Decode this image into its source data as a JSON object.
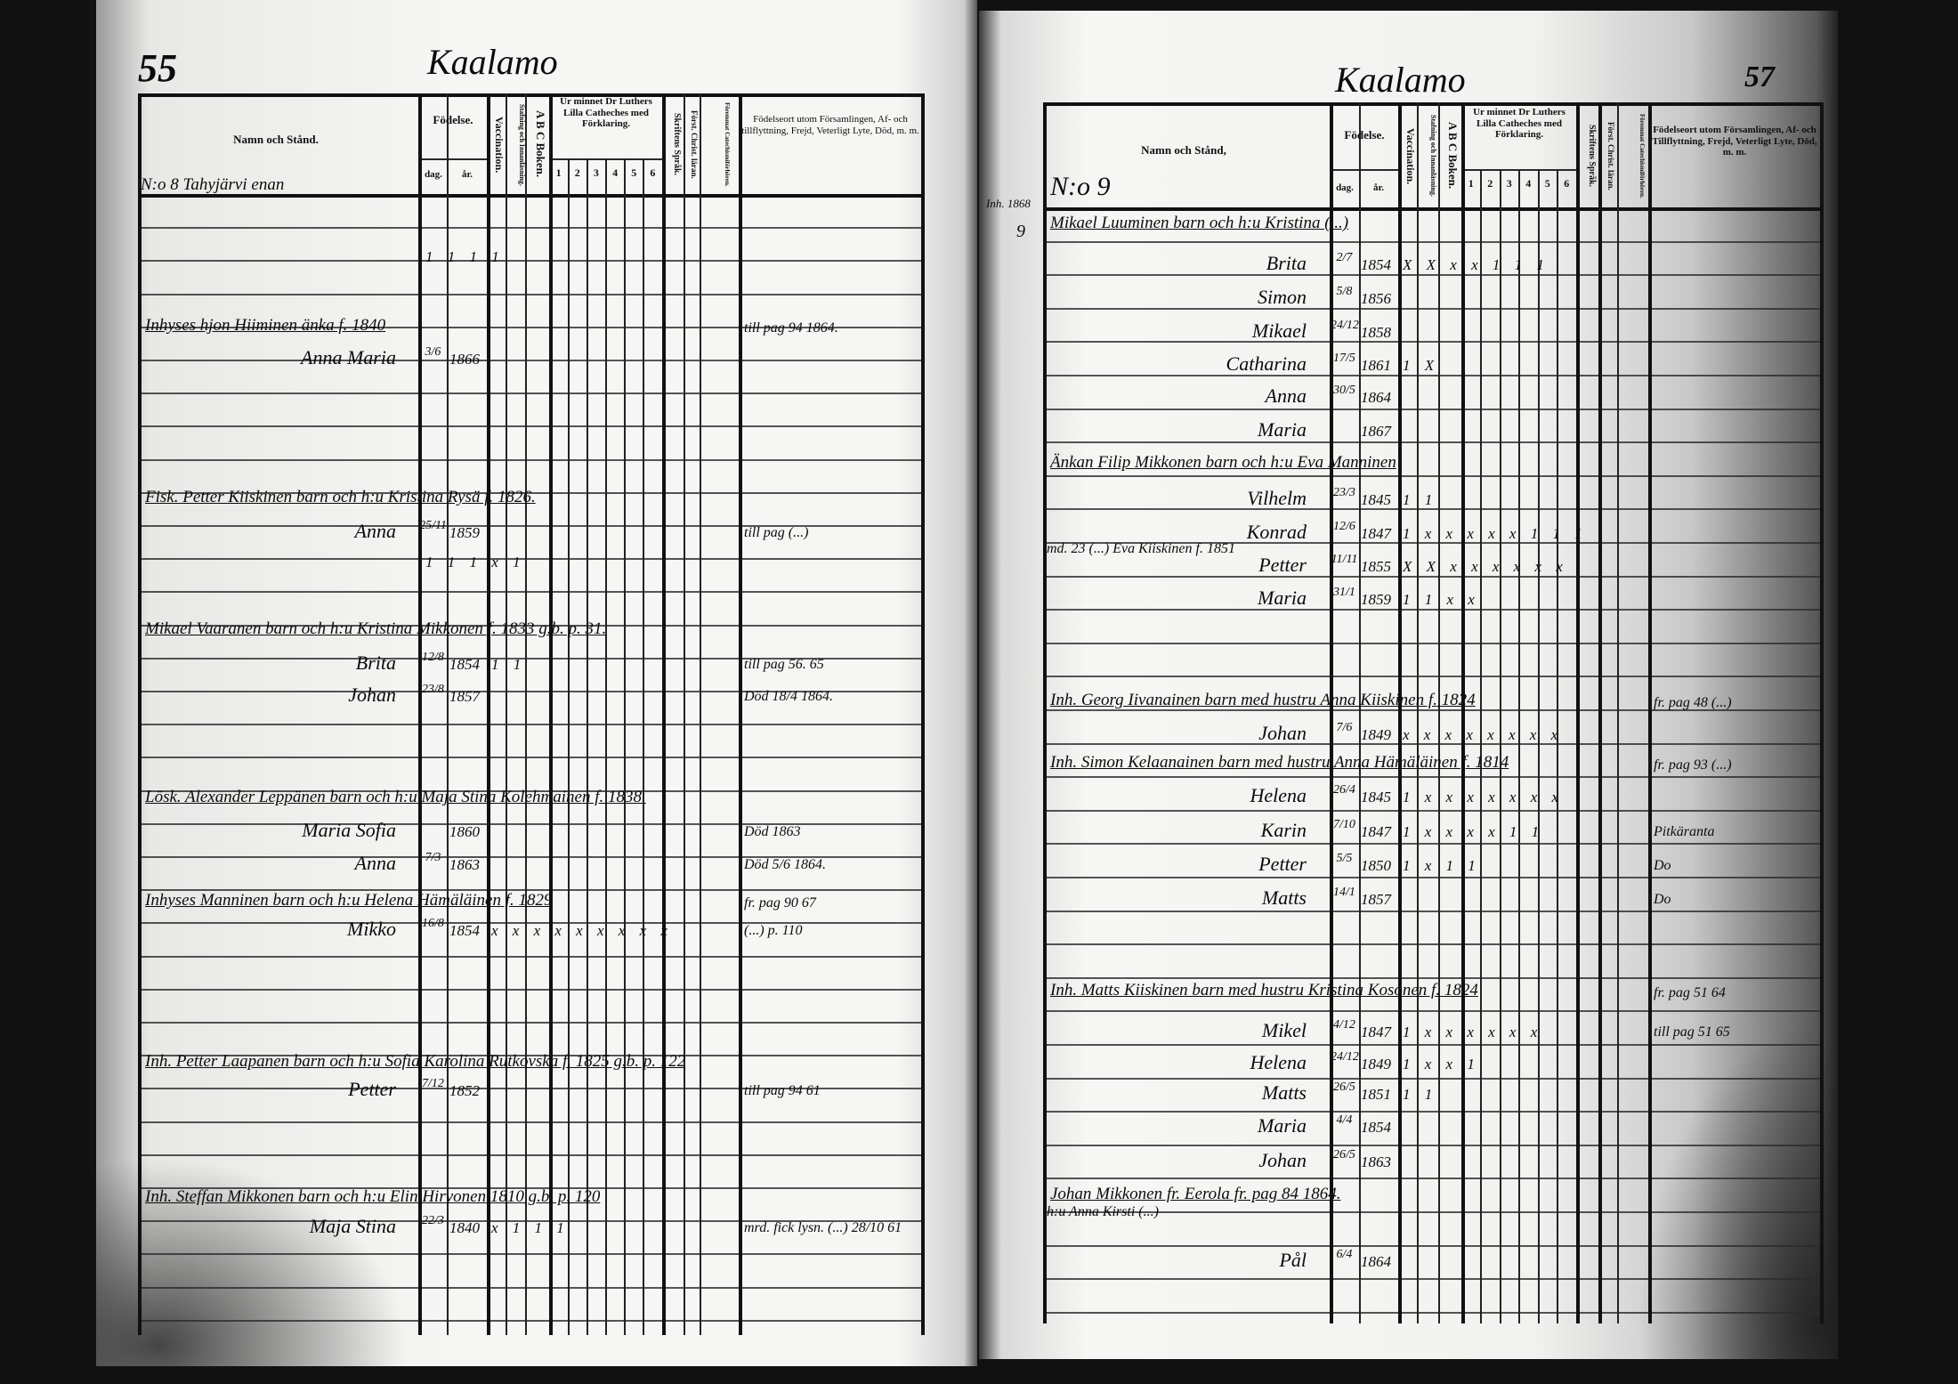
{
  "left_page": {
    "page_number": "55",
    "parish": "Kaalamo",
    "headers": {
      "name": "Namn och Stånd.",
      "birth": "Födelse.",
      "day": "dag.",
      "year": "år.",
      "vaccination": "Vaccination.",
      "spelling": "Stafning och Innanläsning.",
      "abc": "A B C Boken.",
      "catechism": "Ur minnet Dr Luthers Lilla Catheches med Förklaring.",
      "catechism_cols": [
        "1",
        "2",
        "3",
        "4",
        "5",
        "6"
      ],
      "scripture": "Skriftens Språk.",
      "christian": "Först. Christ. läran.",
      "examination": "Föremmat Catechismiförhören.",
      "remarks": "Födelseort utom Församlingen, Af- och tillflyttning, Frejd, Veterligt Lyte, Död, m. m."
    },
    "household_number": "N:o 8 Tahyjärvi enan",
    "entries": [
      {
        "type": "marks",
        "marks": "1 1 1 1"
      },
      {
        "type": "head",
        "text": "Inhyses hjon Hiiminen änka f. 1840",
        "note": "till pag 94 1864."
      },
      {
        "type": "child",
        "name": "Anna Maria",
        "day": "3/6",
        "year": "1866"
      },
      {
        "type": "head",
        "text": "Fisk. Petter Kiiskinen barn och h:u Kristina Rysä f. 1826."
      },
      {
        "type": "child",
        "name": "Anna",
        "day": "25/11",
        "year": "1859",
        "note": "till pag (...)"
      },
      {
        "type": "marks",
        "marks": "1 1 1 x 1"
      },
      {
        "type": "head",
        "text": "Mikael Vaaranen barn och h:u Kristina Mikkonen f. 1833 g.b. p. 31."
      },
      {
        "type": "child",
        "name": "Brita",
        "day": "12/8",
        "year": "1854",
        "marks": "1 1",
        "note": "till pag 56. 65"
      },
      {
        "type": "child",
        "name": "Johan",
        "day": "23/8",
        "year": "1857",
        "note": "Död 18/4 1864."
      },
      {
        "type": "head",
        "text": "Lösk. Alexander Leppänen barn och h:u Maja Stina Kolehmainen f. 1838."
      },
      {
        "type": "child",
        "name": "Maria Sofia",
        "day": "",
        "year": "1860",
        "note": "Död 1863"
      },
      {
        "type": "child",
        "name": "Anna",
        "day": "7/3",
        "year": "1863",
        "note": "Död 5/6 1864."
      },
      {
        "type": "head",
        "text": "Inhyses Manninen barn och h:u Helena Hämäläinen f. 1829",
        "note": "fr. pag 90 67"
      },
      {
        "type": "child",
        "name": "Mikko",
        "day": "16/8",
        "year": "1854",
        "marks": "x x x x x x x x x",
        "note": "(...) p. 110"
      },
      {
        "type": "head",
        "text": "Inh. Petter Laapanen barn och h:u Sofia Karolina Rutkovska f. 1825 g.b. p. 122"
      },
      {
        "type": "child",
        "name": "Petter",
        "day": "7/12",
        "year": "1852",
        "note": "till pag 94 61"
      },
      {
        "type": "head",
        "text": "Inh. Steffan Mikkonen barn och h:u Elin Hirvonen 1810 g.b. p. 120"
      },
      {
        "type": "child",
        "name": "Maja Stina",
        "day": "22/3",
        "year": "1840",
        "marks": "x 1 1 1",
        "note": "mrd. fick lysn. (...) 28/10 61"
      }
    ]
  },
  "right_page": {
    "page_number": "57",
    "parish": "Kaalamo",
    "headers": {
      "name": "Namn och Stånd,",
      "birth": "Födelse.",
      "day": "dag.",
      "year": "år.",
      "vaccination": "Vaccination.",
      "spelling": "Stafning och Innanläsning.",
      "abc": "A B C Boken.",
      "catechism": "Ur minnet Dr Luthers Lilla Catheches med Förklaring.",
      "catechism_cols": [
        "1",
        "2",
        "3",
        "4",
        "5",
        "6"
      ],
      "scripture": "Skriftens Språk.",
      "christian": "Först. Christ. läran.",
      "examination": "Föremmat Catechismiförhören.",
      "remarks": "Födelseort utom Församlingen, Af- och Tillflyttning, Frejd, Veterligt Lyte, Död, m. m."
    },
    "household_number": "N:o 9",
    "margin_note": "Inh. 1868",
    "margin_number": "9",
    "entries": [
      {
        "type": "head",
        "text": "Mikael Luuminen barn och h:u Kristina (...)"
      },
      {
        "type": "child",
        "name": "Brita",
        "day": "2/7",
        "year": "1854",
        "marks": "X X x x 1 1 1"
      },
      {
        "type": "child",
        "name": "Simon",
        "day": "5/8",
        "year": "1856"
      },
      {
        "type": "child",
        "name": "Mikael",
        "day": "24/12",
        "year": "1858"
      },
      {
        "type": "child",
        "name": "Catharina",
        "day": "17/5",
        "year": "1861",
        "marks": "1 X"
      },
      {
        "type": "child",
        "name": "Anna",
        "day": "30/5",
        "year": "1864"
      },
      {
        "type": "child",
        "name": "Maria",
        "day": "",
        "year": "1867"
      },
      {
        "type": "head",
        "text": "Änkan Filip Mikkonen barn och h:u Eva Manninen"
      },
      {
        "type": "child",
        "name": "Vilhelm",
        "day": "23/3",
        "year": "1845",
        "marks": "1 1"
      },
      {
        "type": "child",
        "name": "Konrad",
        "day": "12/6",
        "year": "1847",
        "marks": "1 x x x x x 1 1 1"
      },
      {
        "type": "note",
        "text": "md. 23 (...) Eva Kiiskinen f. 1851"
      },
      {
        "type": "child",
        "name": "Petter",
        "day": "11/11",
        "year": "1855",
        "marks": "X X x x x x x x"
      },
      {
        "type": "child",
        "name": "Maria",
        "day": "31/1",
        "year": "1859",
        "marks": "1 1 x x"
      },
      {
        "type": "head",
        "text": "Inh. Georg Iivanainen barn med hustru Anna Kiiskinen f. 1824",
        "note": "fr. pag 48 (...)"
      },
      {
        "type": "child",
        "name": "Johan",
        "day": "7/6",
        "year": "1849",
        "marks": "x x x x x x x x"
      },
      {
        "type": "head",
        "text": "Inh. Simon Kelaanainen barn med hustru Anna Hämäläinen f. 1814",
        "note": "fr. pag 93 (...)"
      },
      {
        "type": "child",
        "name": "Helena",
        "day": "26/4",
        "year": "1845",
        "marks": "1 x x x x x x x"
      },
      {
        "type": "child",
        "name": "Karin",
        "day": "7/10",
        "year": "1847",
        "marks": "1 x x x x 1 1",
        "note": "Pitkäranta"
      },
      {
        "type": "child",
        "name": "Petter",
        "day": "5/5",
        "year": "1850",
        "marks": "1 x 1 1",
        "note": "Do"
      },
      {
        "type": "child",
        "name": "Matts",
        "day": "14/1",
        "year": "1857",
        "note": "Do"
      },
      {
        "type": "head",
        "text": "Inh. Matts Kiiskinen barn med hustru Kristina Kosonen f. 1824",
        "note": "fr. pag 51 64"
      },
      {
        "type": "child",
        "name": "Mikel",
        "day": "4/12",
        "year": "1847",
        "marks": "1 x x x x x x",
        "note": "till pag 51 65"
      },
      {
        "type": "child",
        "name": "Helena",
        "day": "24/12",
        "year": "1849",
        "marks": "1 x x 1"
      },
      {
        "type": "child",
        "name": "Matts",
        "day": "26/5",
        "year": "1851",
        "marks": "1 1"
      },
      {
        "type": "child",
        "name": "Maria",
        "day": "4/4",
        "year": "1854"
      },
      {
        "type": "child",
        "name": "Johan",
        "day": "26/5",
        "year": "1863"
      },
      {
        "type": "head",
        "text": "Johan Mikkonen fr. Eerola fr. pag 84 1864."
      },
      {
        "type": "note",
        "text": "h:u Anna Kirsti (...)"
      },
      {
        "type": "child",
        "name": "Pål",
        "day": "6/4",
        "year": "1864"
      }
    ]
  }
}
